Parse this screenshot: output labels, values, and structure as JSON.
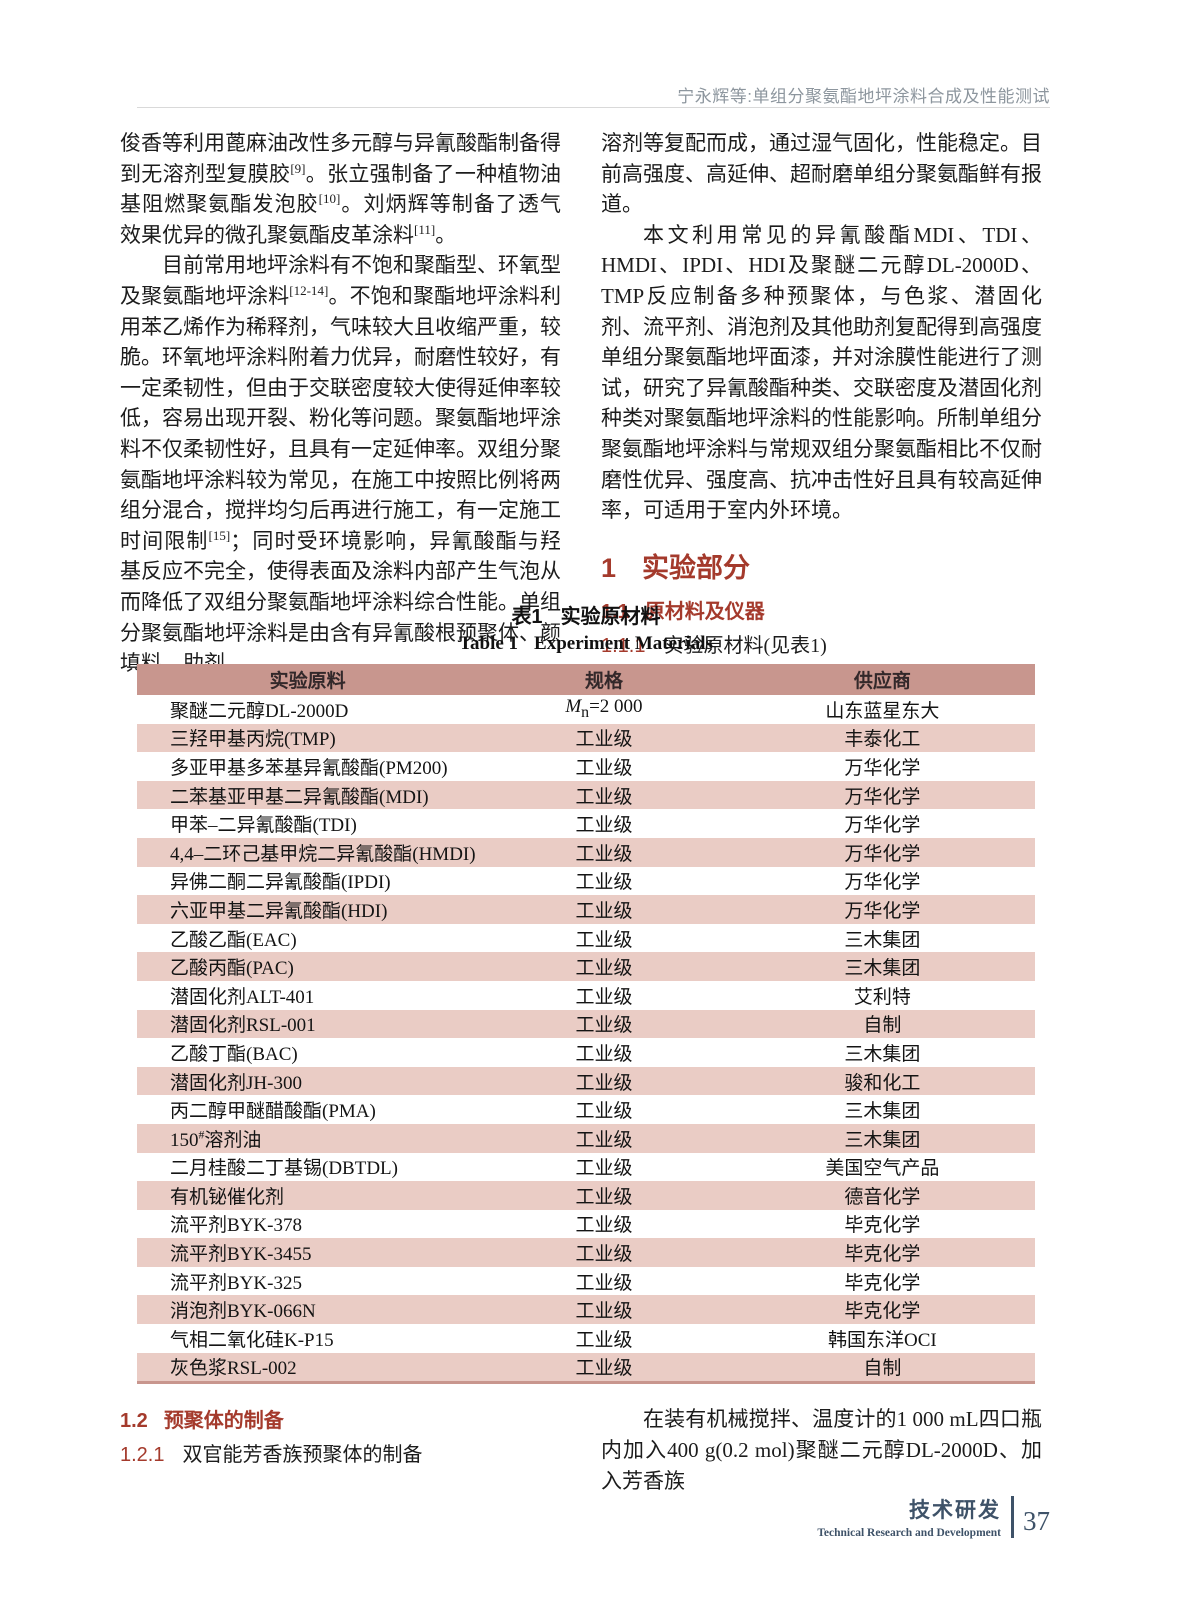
{
  "colors": {
    "accent_red": "#a43a2c",
    "table_header_bg": "#c8968e",
    "table_row_alt_bg": "#eaccc5",
    "running_head_gray": "#8d969e",
    "footer_blue": "#3e5268"
  },
  "running_head": "宁永辉等:单组分聚氨酯地坪涂料合成及性能测试",
  "left_column": {
    "p1_html": "俊香等利用蓖麻油改性多元醇与异氰酸酯制备得到无溶剂型复膜胶<sup>[9]</sup>。张立强制备了一种植物油基阻燃聚氨酯发泡胶<sup>[10]</sup>。刘炳辉等制备了透气效果优异的微孔聚氨酯皮革涂料<sup>[11]</sup>。",
    "p2_html": "目前常用地坪涂料有不饱和聚酯型、环氧型及聚氨酯地坪涂料<sup>[12-14]</sup>。不饱和聚酯地坪涂料利用苯乙烯作为稀释剂，气味较大且收缩严重，较脆。环氧地坪涂料附着力优异，耐磨性较好，有一定柔韧性，但由于交联密度较大使得延伸率较低，容易出现开裂、粉化等问题。聚氨酯地坪涂料不仅柔韧性好，且具有一定延伸率。双组分聚氨酯地坪涂料较为常见，在施工中按照比例将两组分混合，搅拌均匀后再进行施工，有一定施工时间限制<sup>[15]</sup>；同时受环境影响，异氰酸酯与羟基反应不完全，使得表面及涂料内部产生气泡从而降低了双组分聚氨酯地坪涂料综合性能。单组分聚氨酯地坪涂料是由含有异氰酸根预聚体、颜填料、助剂、"
  },
  "right_column": {
    "p1_html": "溶剂等复配而成，通过湿气固化，性能稳定。目前高强度、高延伸、超耐磨单组分聚氨酯鲜有报道。",
    "p2_html": "本文利用常见的异氰酸酯MDI、TDI、HMDI、IPDI、HDI及聚醚二元醇DL-2000D、TMP反应制备多种预聚体，与色浆、潜固化剂、流平剂、消泡剂及其他助剂复配得到高强度单组分聚氨酯地坪面漆，并对涂膜性能进行了测试，研究了异氰酸酯种类、交联密度及潜固化剂种类对聚氨酯地坪涂料的性能影响。所制单组分聚氨酯地坪涂料与常规双组分聚氨酯相比不仅耐磨性优异、强度高、抗冲击性好且具有较高延伸率，可适用于室内外环境。"
  },
  "sections": {
    "s1": {
      "num": "1",
      "title": "实验部分"
    },
    "s1_1": {
      "num": "1.1",
      "title": "原材料及仪器"
    },
    "s1_1_1": {
      "num": "1.1.1",
      "title": "实验原材料(见表1)"
    },
    "s1_1_2": {
      "num": "1.1.2",
      "title": "实验仪器(见表2)"
    },
    "s1_2": {
      "num": "1.2",
      "title": "预聚体的制备"
    },
    "s1_2_1": {
      "num": "1.2.1",
      "title": "双官能芳香族预聚体的制备"
    }
  },
  "table1": {
    "caption_zh_label": "表1",
    "caption_zh_text": "实验原材料",
    "caption_en_label": "Table 1",
    "caption_en_text": "Experiment Materials",
    "headers": [
      "实验原料",
      "规格",
      "供应商"
    ],
    "rows": [
      [
        "聚醚二元醇DL-2000D",
        "<i>M</i><sub>n</sub>=2 000",
        "山东蓝星东大"
      ],
      [
        "三羟甲基丙烷(TMP)",
        "工业级",
        "丰泰化工"
      ],
      [
        "多亚甲基多苯基异氰酸酯(PM200)",
        "工业级",
        "万华化学"
      ],
      [
        "二苯基亚甲基二异氰酸酯(MDI)",
        "工业级",
        "万华化学"
      ],
      [
        "甲苯–二异氰酸酯(TDI)",
        "工业级",
        "万华化学"
      ],
      [
        "4,4–二环己基甲烷二异氰酸酯(HMDI)",
        "工业级",
        "万华化学"
      ],
      [
        "异佛二酮二异氰酸酯(IPDI)",
        "工业级",
        "万华化学"
      ],
      [
        "六亚甲基二异氰酸酯(HDI)",
        "工业级",
        "万华化学"
      ],
      [
        "乙酸乙酯(EAC)",
        "工业级",
        "三木集团"
      ],
      [
        "乙酸丙酯(PAC)",
        "工业级",
        "三木集团"
      ],
      [
        "潜固化剂ALT-401",
        "工业级",
        "艾利特"
      ],
      [
        "潜固化剂RSL-001",
        "工业级",
        "自制"
      ],
      [
        "乙酸丁酯(BAC)",
        "工业级",
        "三木集团"
      ],
      [
        "潜固化剂JH-300",
        "工业级",
        "骏和化工"
      ],
      [
        "丙二醇甲醚醋酸酯(PMA)",
        "工业级",
        "三木集团"
      ],
      [
        "150<sup>#</sup>溶剂油",
        "工业级",
        "三木集团"
      ],
      [
        "二月桂酸二丁基锡(DBTDL)",
        "工业级",
        "美国空气产品"
      ],
      [
        "有机铋催化剂",
        "工业级",
        "德音化学"
      ],
      [
        "流平剂BYK-378",
        "工业级",
        "毕克化学"
      ],
      [
        "流平剂BYK-3455",
        "工业级",
        "毕克化学"
      ],
      [
        "流平剂BYK-325",
        "工业级",
        "毕克化学"
      ],
      [
        "消泡剂BYK-066N",
        "工业级",
        "毕克化学"
      ],
      [
        "气相二氧化硅K-P15",
        "工业级",
        "韩国东洋OCI"
      ],
      [
        "灰色浆RSL-002",
        "工业级",
        "自制"
      ]
    ]
  },
  "bottom_right": {
    "p_html": "在装有机械搅拌、温度计的1 000 mL四口瓶内加入400 g(0.2 mol)聚醚二元醇DL-2000D、加入芳香族"
  },
  "footer": {
    "zh": "技术研发",
    "en": "Technical Research and Development",
    "page_number": "37"
  }
}
